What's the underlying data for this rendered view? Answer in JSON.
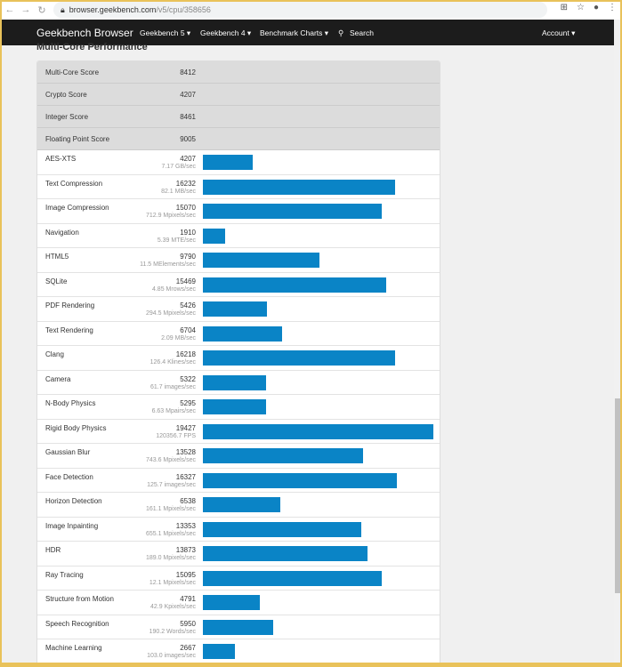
{
  "browser": {
    "url_host": "browser.geekbench.com",
    "url_path": "/v5/cpu/358656"
  },
  "nav": {
    "brand": "Geekbench Browser",
    "items": [
      "Geekbench 5 ▾",
      "Geekbench 4 ▾",
      "Benchmark Charts ▾",
      "Search"
    ],
    "account": "Account ▾"
  },
  "section_title": "Multi-Core Performance",
  "summary": [
    {
      "label": "Multi-Core Score",
      "value": "8412"
    },
    {
      "label": "Crypto Score",
      "value": "4207"
    },
    {
      "label": "Integer Score",
      "value": "8461"
    },
    {
      "label": "Floating Point Score",
      "value": "9005"
    }
  ],
  "bar_color": "#0a84c6",
  "benchmarks": [
    {
      "label": "AES-XTS",
      "score": 4207,
      "unit": "7.17 GB/sec"
    },
    {
      "label": "Text Compression",
      "score": 16232,
      "unit": "82.1 MB/sec"
    },
    {
      "label": "Image Compression",
      "score": 15070,
      "unit": "712.9 Mpixels/sec"
    },
    {
      "label": "Navigation",
      "score": 1910,
      "unit": "5.39 MTE/sec"
    },
    {
      "label": "HTML5",
      "score": 9790,
      "unit": "11.5 MElements/sec"
    },
    {
      "label": "SQLite",
      "score": 15469,
      "unit": "4.85 Mrows/sec"
    },
    {
      "label": "PDF Rendering",
      "score": 5426,
      "unit": "294.5 Mpixels/sec"
    },
    {
      "label": "Text Rendering",
      "score": 6704,
      "unit": "2.09 MB/sec"
    },
    {
      "label": "Clang",
      "score": 16218,
      "unit": "126.4 Klines/sec"
    },
    {
      "label": "Camera",
      "score": 5322,
      "unit": "61.7 images/sec"
    },
    {
      "label": "N-Body Physics",
      "score": 5295,
      "unit": "6.63 Mpairs/sec"
    },
    {
      "label": "Rigid Body Physics",
      "score": 19427,
      "unit": "120356.7 FPS"
    },
    {
      "label": "Gaussian Blur",
      "score": 13528,
      "unit": "743.6 Mpixels/sec"
    },
    {
      "label": "Face Detection",
      "score": 16327,
      "unit": "125.7 images/sec"
    },
    {
      "label": "Horizon Detection",
      "score": 6538,
      "unit": "161.1 Mpixels/sec"
    },
    {
      "label": "Image Inpainting",
      "score": 13353,
      "unit": "655.1 Mpixels/sec"
    },
    {
      "label": "HDR",
      "score": 13873,
      "unit": "189.0 Mpixels/sec"
    },
    {
      "label": "Ray Tracing",
      "score": 15095,
      "unit": "12.1 Mpixels/sec"
    },
    {
      "label": "Structure from Motion",
      "score": 4791,
      "unit": "42.9 Kpixels/sec"
    },
    {
      "label": "Speech Recognition",
      "score": 5950,
      "unit": "190.2 Words/sec"
    },
    {
      "label": "Machine Learning",
      "score": 2667,
      "unit": "103.0 images/sec"
    }
  ]
}
